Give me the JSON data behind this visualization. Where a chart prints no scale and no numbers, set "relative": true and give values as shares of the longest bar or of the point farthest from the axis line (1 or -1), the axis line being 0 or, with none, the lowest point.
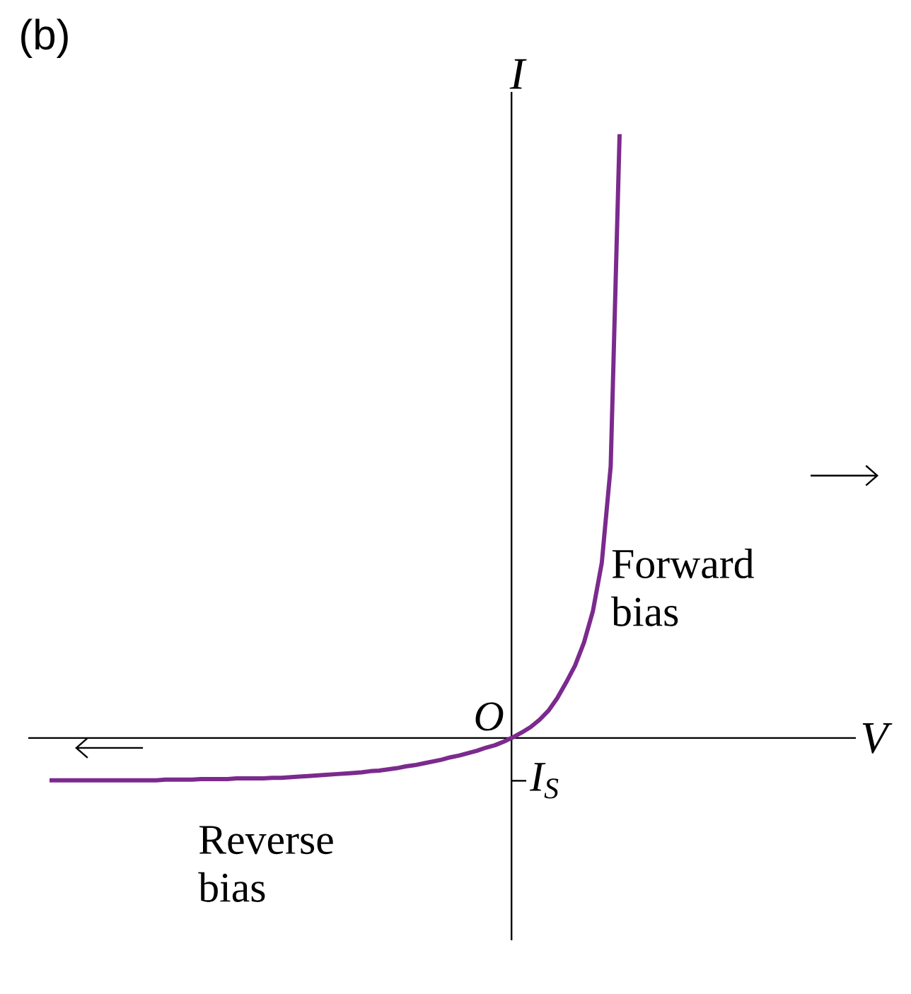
{
  "chart_data": {
    "type": "line",
    "relative": true,
    "title": "(b)",
    "ylabel": "I",
    "color": "#7b2a8e",
    "categories": [
      null,
      null,
      null,
      null,
      null,
      null,
      null,
      null,
      null,
      null,
      null,
      null,
      null,
      null,
      null,
      null,
      null,
      null,
      null,
      null,
      null,
      null,
      null,
      null,
      null,
      null,
      null,
      null,
      null,
      null,
      null,
      null,
      null,
      null,
      null,
      null,
      null,
      null,
      null,
      null,
      null,
      null,
      null,
      null,
      null,
      null,
      null,
      null,
      null,
      null,
      null,
      null,
      null,
      null,
      null,
      null,
      null,
      null,
      null,
      null,
      null,
      null,
      null,
      null,
      null
    ],
    "values": [
      -0.07,
      -0.07,
      -0.07,
      -0.07,
      -0.07,
      -0.07,
      -0.07,
      -0.07,
      -0.07,
      -0.07,
      -0.07,
      -0.07,
      -0.07,
      -0.069,
      -0.069,
      -0.069,
      -0.069,
      -0.068,
      -0.068,
      -0.068,
      -0.068,
      -0.067,
      -0.067,
      -0.067,
      -0.067,
      -0.066,
      -0.066,
      -0.065,
      -0.064,
      -0.063,
      -0.062,
      -0.061,
      -0.06,
      -0.059,
      -0.058,
      -0.057,
      -0.055,
      -0.054,
      -0.052,
      -0.05,
      -0.047,
      -0.045,
      -0.042,
      -0.039,
      -0.036,
      -0.032,
      -0.029,
      -0.025,
      -0.021,
      -0.016,
      -0.012,
      -0.006,
      0.001,
      0.009,
      0.018,
      0.03,
      0.045,
      0.066,
      0.092,
      0.12,
      0.158,
      0.21,
      0.29,
      0.45,
      1.0
    ],
    "annotations": [
      "O",
      "Forward bias",
      "Reverse bias",
      "I$_{S}$",
      "V"
    ],
    "marker": "none",
    "line_style": "solid"
  }
}
